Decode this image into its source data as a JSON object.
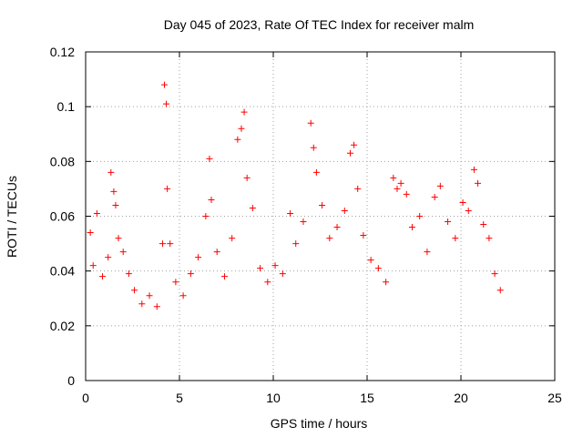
{
  "chart_data": {
    "type": "scatter",
    "title": "Day 045 of 2023, Rate Of TEC Index for receiver malm",
    "xlabel": "GPS time / hours",
    "ylabel": "ROTI / TECUs",
    "xlim": [
      0,
      25
    ],
    "ylim": [
      0,
      0.12
    ],
    "x_ticks": [
      "0",
      "5",
      "10",
      "15",
      "20",
      "25"
    ],
    "y_ticks": [
      "0",
      "0.02",
      "0.04",
      "0.06",
      "0.08",
      "0.1",
      "0.12"
    ],
    "grid": true,
    "legend": "none",
    "marker": "plus",
    "marker_color": "#ff0000",
    "series": [
      {
        "x": [
          0.25,
          0.4,
          0.6,
          0.9,
          1.2,
          1.35,
          1.5,
          1.6,
          1.75,
          2.0,
          2.3,
          2.6,
          3.0,
          3.4,
          3.8,
          4.1,
          4.2,
          4.3,
          4.35,
          4.5,
          4.8,
          5.2,
          5.6,
          6.0,
          6.4,
          6.6,
          6.7,
          7.0,
          7.4,
          7.8,
          8.1,
          8.3,
          8.45,
          8.6,
          8.9,
          9.3,
          9.7,
          10.1,
          10.5,
          10.9,
          11.2,
          11.6,
          12.0,
          12.15,
          12.3,
          12.6,
          13.0,
          13.4,
          13.8,
          14.1,
          14.3,
          14.5,
          14.8,
          15.2,
          15.6,
          16.0,
          16.4,
          16.6,
          16.8,
          17.1,
          17.4,
          17.8,
          18.2,
          18.6,
          18.9,
          19.3,
          19.7,
          20.1,
          20.4,
          20.7,
          20.9,
          21.2,
          21.5,
          21.8,
          22.1
        ],
        "y": [
          0.054,
          0.042,
          0.061,
          0.038,
          0.045,
          0.076,
          0.069,
          0.064,
          0.052,
          0.047,
          0.039,
          0.033,
          0.028,
          0.031,
          0.027,
          0.05,
          0.108,
          0.101,
          0.07,
          0.05,
          0.036,
          0.031,
          0.039,
          0.045,
          0.06,
          0.081,
          0.066,
          0.047,
          0.038,
          0.052,
          0.088,
          0.092,
          0.098,
          0.074,
          0.063,
          0.041,
          0.036,
          0.042,
          0.039,
          0.061,
          0.05,
          0.058,
          0.094,
          0.085,
          0.076,
          0.064,
          0.052,
          0.056,
          0.062,
          0.083,
          0.086,
          0.07,
          0.053,
          0.044,
          0.041,
          0.036,
          0.074,
          0.07,
          0.072,
          0.068,
          0.056,
          0.06,
          0.047,
          0.067,
          0.071,
          0.058,
          0.052,
          0.065,
          0.062,
          0.077,
          0.072,
          0.057,
          0.052,
          0.039,
          0.033
        ]
      }
    ]
  }
}
